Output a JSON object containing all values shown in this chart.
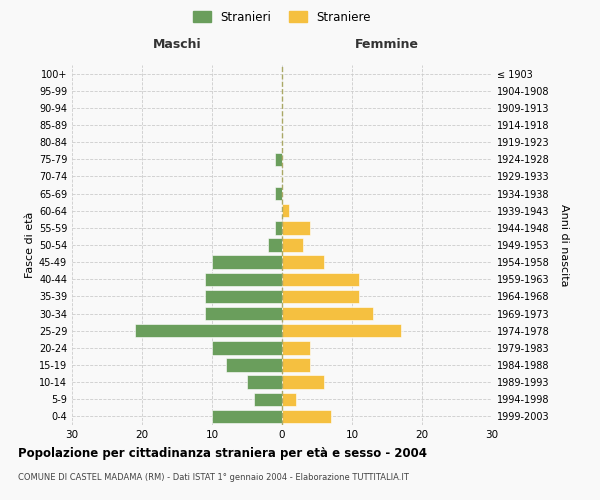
{
  "age_groups": [
    "0-4",
    "5-9",
    "10-14",
    "15-19",
    "20-24",
    "25-29",
    "30-34",
    "35-39",
    "40-44",
    "45-49",
    "50-54",
    "55-59",
    "60-64",
    "65-69",
    "70-74",
    "75-79",
    "80-84",
    "85-89",
    "90-94",
    "95-99",
    "100+"
  ],
  "birth_years": [
    "1999-2003",
    "1994-1998",
    "1989-1993",
    "1984-1988",
    "1979-1983",
    "1974-1978",
    "1969-1973",
    "1964-1968",
    "1959-1963",
    "1954-1958",
    "1949-1953",
    "1944-1948",
    "1939-1943",
    "1934-1938",
    "1929-1933",
    "1924-1928",
    "1919-1923",
    "1914-1918",
    "1909-1913",
    "1904-1908",
    "≤ 1903"
  ],
  "maschi": [
    10,
    4,
    5,
    8,
    10,
    21,
    11,
    11,
    11,
    10,
    2,
    1,
    0,
    1,
    0,
    1,
    0,
    0,
    0,
    0,
    0
  ],
  "femmine": [
    7,
    2,
    6,
    4,
    4,
    17,
    13,
    11,
    11,
    6,
    3,
    4,
    1,
    0,
    0,
    0,
    0,
    0,
    0,
    0,
    0
  ],
  "color_maschi": "#6a9e5c",
  "color_femmine": "#f5c040",
  "xlim": 30,
  "title": "Popolazione per cittadinanza straniera per età e sesso - 2004",
  "subtitle": "COMUNE DI CASTEL MADAMA (RM) - Dati ISTAT 1° gennaio 2004 - Elaborazione TUTTITALIA.IT",
  "ylabel_left": "Fasce di età",
  "ylabel_right": "Anni di nascita",
  "label_maschi": "Stranieri",
  "label_femmine": "Straniere",
  "header_left": "Maschi",
  "header_right": "Femmine",
  "bg_color": "#f9f9f9",
  "grid_color": "#cccccc"
}
